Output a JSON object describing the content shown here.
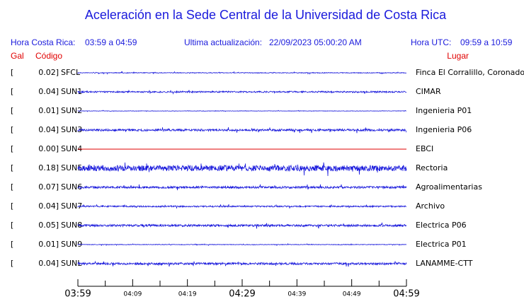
{
  "header": {
    "title": "Aceleración en la Sede Central de la Universidad de Costa Rica",
    "local_label": "Hora Costa Rica:",
    "local_range": "03:59 a 04:59",
    "update_label": "Ultima actualización:",
    "update_time": "22/09/2023 05:00:20 AM",
    "utc_label": "Hora UTC:",
    "utc_range": "09:59 a 10:59",
    "gal_label": "Gal",
    "code_label": "Código",
    "place_label": "Lugar"
  },
  "stations": [
    {
      "gal": "0.02]",
      "code": "SFCL",
      "place": "Finca El Corralillo, Coronado"
    },
    {
      "gal": "0.04]",
      "code": "SUN1",
      "place": "CIMAR"
    },
    {
      "gal": "0.01]",
      "code": "SUN2",
      "place": "Ingenieria P01"
    },
    {
      "gal": "0.04]",
      "code": "SUN3",
      "place": "Ingenieria P06"
    },
    {
      "gal": "0.00]",
      "code": "SUN4",
      "place": "EBCI"
    },
    {
      "gal": "0.18]",
      "code": "SUN5",
      "place": "Rectoria"
    },
    {
      "gal": "0.07]",
      "code": "SUN6",
      "place": "Agroalimentarias"
    },
    {
      "gal": "0.04]",
      "code": "SUN7",
      "place": "Archivo"
    },
    {
      "gal": "0.05]",
      "code": "SUN8",
      "place": "Electrica P06"
    },
    {
      "gal": "0.01]",
      "code": "SUN9",
      "place": "Electrica P01"
    },
    {
      "gal": "0.04]",
      "code": "SUNL",
      "place": "LANAMME-CTT"
    }
  ],
  "time_axis": [
    "03:59",
    "04:09",
    "04:19",
    "04:29",
    "04:39",
    "04:49",
    "04:59"
  ]
}
